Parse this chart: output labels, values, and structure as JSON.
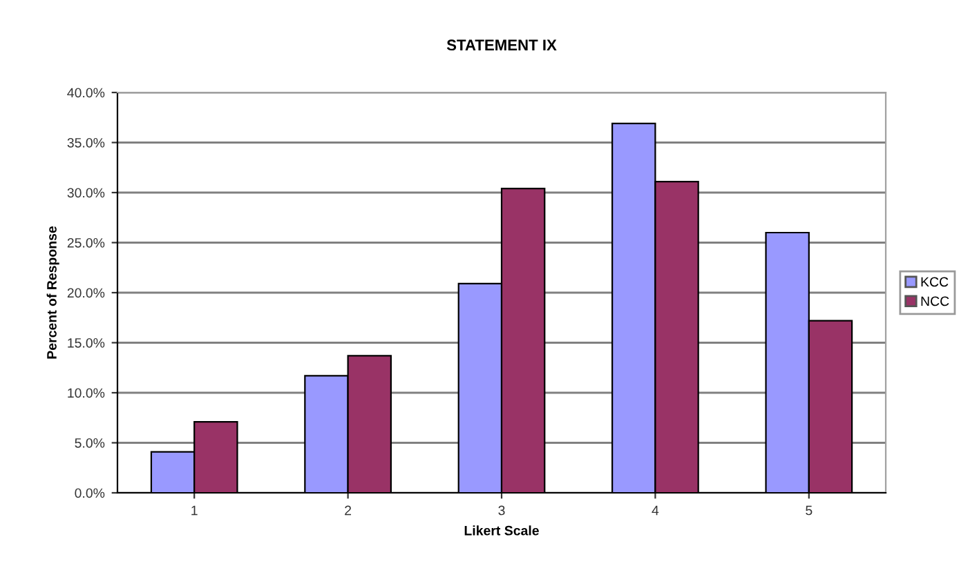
{
  "chart_data": {
    "type": "bar",
    "title": "STATEMENT IX",
    "xlabel": "Likert Scale",
    "ylabel": "Percent of Response",
    "categories": [
      "1",
      "2",
      "3",
      "4",
      "5"
    ],
    "series": [
      {
        "name": "KCC",
        "color": "#9999ff",
        "values": [
          4.1,
          11.7,
          20.9,
          36.9,
          26.0
        ]
      },
      {
        "name": "NCC",
        "color": "#993366",
        "values": [
          7.1,
          13.7,
          30.4,
          31.1,
          17.2
        ]
      }
    ],
    "ylim": [
      0,
      40
    ],
    "yticks": [
      {
        "value": 0,
        "label": "0.0%"
      },
      {
        "value": 5,
        "label": "5.0%"
      },
      {
        "value": 10,
        "label": "10.0%"
      },
      {
        "value": 15,
        "label": "15.0%"
      },
      {
        "value": 20,
        "label": "20.0%"
      },
      {
        "value": 25,
        "label": "25.0%"
      },
      {
        "value": 30,
        "label": "30.0%"
      },
      {
        "value": 35,
        "label": "35.0%"
      },
      {
        "value": 40,
        "label": "40.0%"
      }
    ],
    "grid": "y",
    "legend": "right"
  }
}
